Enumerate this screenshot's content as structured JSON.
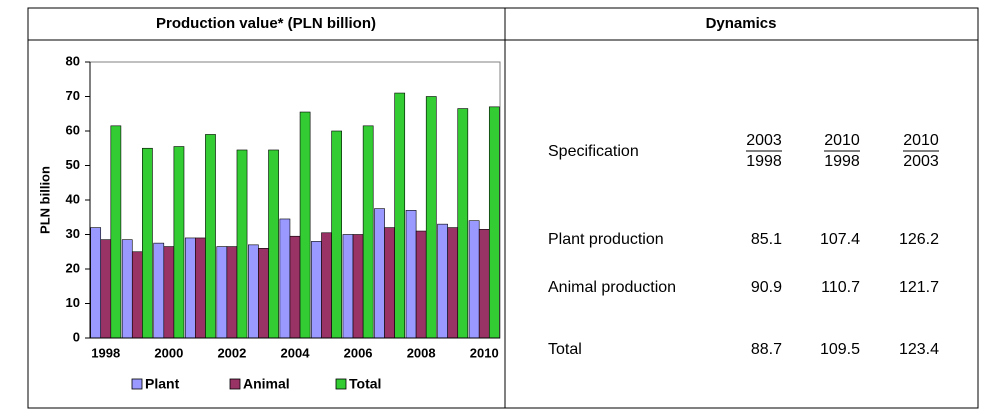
{
  "chart_data": {
    "type": "bar",
    "title": "Production value* (PLN billion)",
    "ylabel": "PLN billion",
    "categories": [
      "1998",
      null,
      "2000",
      null,
      "2002",
      null,
      "2004",
      null,
      "2006",
      null,
      "2008",
      null,
      "2010"
    ],
    "series": [
      {
        "name": "Plant",
        "color": "#9999ff",
        "values": [
          32,
          28.5,
          27.5,
          29,
          26.5,
          27,
          34.5,
          28,
          30,
          37.5,
          37,
          33,
          34
        ]
      },
      {
        "name": "Animal",
        "color": "#993366",
        "values": [
          28.5,
          25,
          26.5,
          29,
          26.5,
          26,
          29.5,
          30.5,
          30,
          32,
          31,
          32,
          31.5
        ]
      },
      {
        "name": "Total",
        "color": "#33cc33",
        "values": [
          61.5,
          55,
          55.5,
          59,
          54.5,
          54.5,
          65.5,
          60,
          61.5,
          71,
          70,
          66.5,
          67
        ]
      }
    ],
    "ylim": [
      0,
      80
    ],
    "yticks": [
      0,
      10,
      20,
      30,
      40,
      50,
      60,
      70,
      80
    ],
    "grid": false,
    "legend": "bottom"
  },
  "dynamics": {
    "title": "Dynamics",
    "header": "Specification",
    "columns": [
      {
        "num": "2003",
        "den": "1998"
      },
      {
        "num": "2010",
        "den": "1998"
      },
      {
        "num": "2010",
        "den": "2003"
      }
    ],
    "rows": [
      {
        "label": "Plant production",
        "values": [
          85.1,
          107.4,
          126.2
        ]
      },
      {
        "label": "Animal production",
        "values": [
          90.9,
          110.7,
          121.7
        ]
      },
      {
        "label": "Total",
        "values": [
          88.7,
          109.5,
          123.4
        ]
      }
    ]
  }
}
